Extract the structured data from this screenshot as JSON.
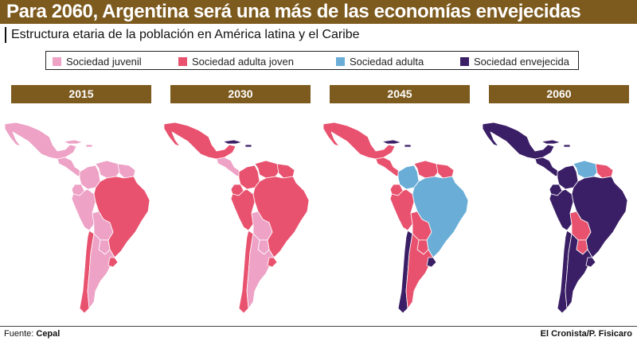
{
  "title": "Para 2060, Argentina será una más de las economías envejecidas",
  "subtitle": "Estructura etaria de la población en América latina y el Caribe",
  "legend": [
    {
      "label": "Sociedad juvenil",
      "color": "#eda2c6"
    },
    {
      "label": "Sociedad adulta joven",
      "color": "#e8526f"
    },
    {
      "label": "Sociedad adulta",
      "color": "#6aaed8"
    },
    {
      "label": "Sociedad envejecida",
      "color": "#3b1f66"
    }
  ],
  "maps": [
    {
      "year": "2015",
      "regions": {
        "mexico": "#eda2c6",
        "central_america": "#eda2c6",
        "caribbean": "#eda2c6",
        "brazil": "#e8526f",
        "colombia": "#eda2c6",
        "venezuela": "#eda2c6",
        "guyanas": "#eda2c6",
        "peru": "#eda2c6",
        "ecuador": "#eda2c6",
        "bolivia": "#eda2c6",
        "paraguay": "#eda2c6",
        "chile": "#e8526f",
        "argentina": "#eda2c6",
        "uruguay": "#e8526f"
      }
    },
    {
      "year": "2030",
      "regions": {
        "mexico": "#e8526f",
        "central_america": "#eda2c6",
        "caribbean": "#3b1f66",
        "brazil": "#e8526f",
        "colombia": "#e8526f",
        "venezuela": "#e8526f",
        "guyanas": "#e8526f",
        "peru": "#e8526f",
        "ecuador": "#e8526f",
        "bolivia": "#eda2c6",
        "paraguay": "#eda2c6",
        "chile": "#e8526f",
        "argentina": "#eda2c6",
        "uruguay": "#e8526f"
      }
    },
    {
      "year": "2045",
      "regions": {
        "mexico": "#e8526f",
        "central_america": "#e8526f",
        "caribbean": "#3b1f66",
        "brazil": "#6aaed8",
        "colombia": "#6aaed8",
        "venezuela": "#e8526f",
        "guyanas": "#e8526f",
        "peru": "#e8526f",
        "ecuador": "#e8526f",
        "bolivia": "#e8526f",
        "paraguay": "#e8526f",
        "chile": "#3b1f66",
        "argentina": "#e8526f",
        "uruguay": "#3b1f66"
      }
    },
    {
      "year": "2060",
      "regions": {
        "mexico": "#3b1f66",
        "central_america": "#3b1f66",
        "caribbean": "#3b1f66",
        "brazil": "#3b1f66",
        "colombia": "#3b1f66",
        "venezuela": "#6aaed8",
        "guyanas": "#e8526f",
        "peru": "#3b1f66",
        "ecuador": "#3b1f66",
        "bolivia": "#e8526f",
        "paraguay": "#e8526f",
        "chile": "#3b1f66",
        "argentina": "#3b1f66",
        "uruguay": "#3b1f66"
      }
    }
  ],
  "footer": {
    "source_label": "Fuente:",
    "source": "Cepal",
    "credit": "El Cronista/P. Fisicaro"
  }
}
